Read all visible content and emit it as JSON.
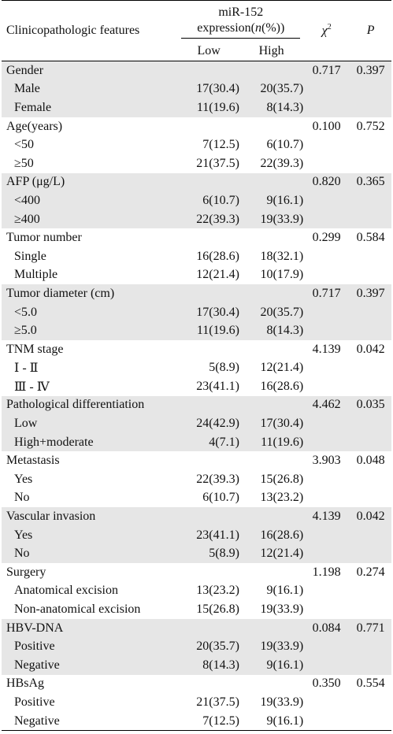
{
  "header": {
    "col_feature": "Clinicopathologic features",
    "mir_line1": "miR-152",
    "mir_line2_pre": "expression(",
    "mir_line2_n": "n",
    "mir_line2_post": "(%))",
    "chi_symbol": "χ",
    "chi_sup": "2",
    "p_label": "P",
    "low": "Low",
    "high": "High"
  },
  "groups": [
    {
      "name": "Gender",
      "chi2": "0.717",
      "p": "0.397",
      "rows": [
        {
          "label": "Male",
          "low": "17(30.4)",
          "high": "20(35.7)"
        },
        {
          "label": "Female",
          "low": "11(19.6)",
          "high": "8(14.3)"
        }
      ]
    },
    {
      "name": "Age(years)",
      "chi2": "0.100",
      "p": "0.752",
      "rows": [
        {
          "label": "<50",
          "low": "7(12.5)",
          "high": "6(10.7)"
        },
        {
          "label": "≥50",
          "low": "21(37.5)",
          "high": "22(39.3)"
        }
      ]
    },
    {
      "name": "AFP (μg/L)",
      "chi2": "0.820",
      "p": "0.365",
      "rows": [
        {
          "label": "<400",
          "low": "6(10.7)",
          "high": "9(16.1)"
        },
        {
          "label": "≥400",
          "low": "22(39.3)",
          "high": "19(33.9)"
        }
      ]
    },
    {
      "name": "Tumor number",
      "chi2": "0.299",
      "p": "0.584",
      "rows": [
        {
          "label": "Single",
          "low": "16(28.6)",
          "high": "18(32.1)"
        },
        {
          "label": "Multiple",
          "low": "12(21.4)",
          "high": "10(17.9)"
        }
      ]
    },
    {
      "name": "Tumor diameter (cm)",
      "chi2": "0.717",
      "p": "0.397",
      "rows": [
        {
          "label": "<5.0",
          "low": "17(30.4)",
          "high": "20(35.7)"
        },
        {
          "label": "≥5.0",
          "low": "11(19.6)",
          "high": "8(14.3)"
        }
      ]
    },
    {
      "name": "TNM stage",
      "chi2": "4.139",
      "p": "0.042",
      "rows": [
        {
          "label": "Ⅰ - Ⅱ",
          "low": "5(8.9)",
          "high": "12(21.4)"
        },
        {
          "label": "Ⅲ - Ⅳ",
          "low": "23(41.1)",
          "high": "16(28.6)"
        }
      ]
    },
    {
      "name": "Pathological differentiation",
      "chi2": "4.462",
      "p": "0.035",
      "rows": [
        {
          "label": "Low",
          "low": "24(42.9)",
          "high": "17(30.4)"
        },
        {
          "label": "High+moderate",
          "low": "4(7.1)",
          "high": "11(19.6)"
        }
      ]
    },
    {
      "name": "Metastasis",
      "chi2": "3.903",
      "p": "0.048",
      "rows": [
        {
          "label": "Yes",
          "low": "22(39.3)",
          "high": "15(26.8)"
        },
        {
          "label": "No",
          "low": "6(10.7)",
          "high": "13(23.2)"
        }
      ]
    },
    {
      "name": "Vascular invasion",
      "chi2": "4.139",
      "p": "0.042",
      "rows": [
        {
          "label": "Yes",
          "low": "23(41.1)",
          "high": "16(28.6)"
        },
        {
          "label": "No",
          "low": "5(8.9)",
          "high": "12(21.4)"
        }
      ]
    },
    {
      "name": "Surgery",
      "chi2": "1.198",
      "p": "0.274",
      "rows": [
        {
          "label": "Anatomical excision",
          "low": "13(23.2)",
          "high": "9(16.1)"
        },
        {
          "label": "Non-anatomical excision",
          "low": "15(26.8)",
          "high": "19(33.9)"
        }
      ]
    },
    {
      "name": "HBV-DNA",
      "chi2": "0.084",
      "p": "0.771",
      "rows": [
        {
          "label": "Positive",
          "low": "20(35.7)",
          "high": "19(33.9)"
        },
        {
          "label": "Negative",
          "low": "8(14.3)",
          "high": "9(16.1)"
        }
      ]
    },
    {
      "name": "HBsAg",
      "chi2": "0.350",
      "p": "0.554",
      "rows": [
        {
          "label": "Positive",
          "low": "21(37.5)",
          "high": "19(33.9)"
        },
        {
          "label": "Negative",
          "low": "7(12.5)",
          "high": "9(16.1)"
        }
      ]
    }
  ]
}
